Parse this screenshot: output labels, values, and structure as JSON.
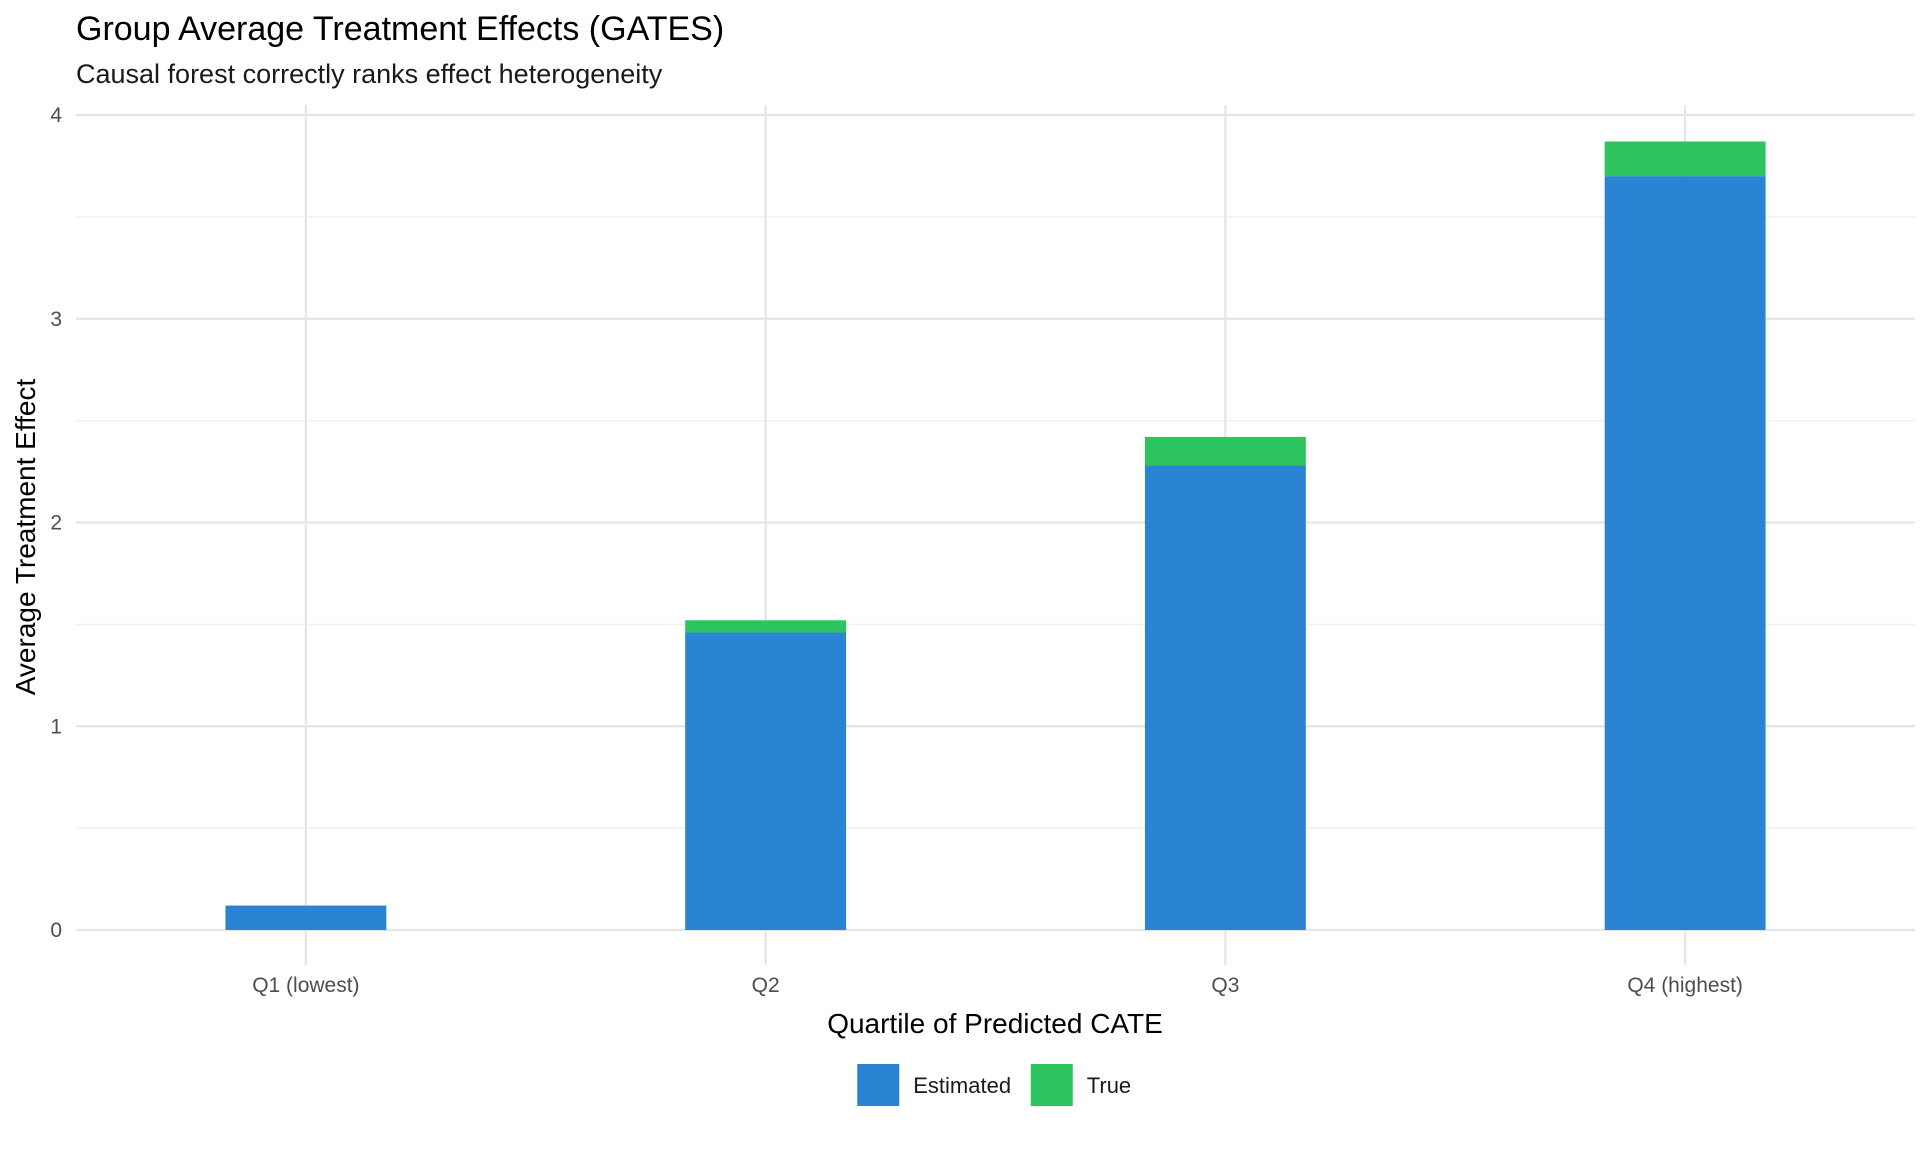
{
  "chart_data": {
    "type": "bar",
    "stacked": true,
    "title": "Group Average Treatment Effects (GATES)",
    "subtitle": "Causal forest correctly ranks effect heterogeneity",
    "xlabel": "Quartile of Predicted CATE",
    "ylabel": "Average Treatment Effect",
    "categories": [
      "Q1 (lowest)",
      "Q2",
      "Q3",
      "Q4 (highest)"
    ],
    "series": [
      {
        "name": "Estimated",
        "color": "#2B84D3",
        "values": [
          0.12,
          1.46,
          2.28,
          3.7
        ]
      },
      {
        "name": "True",
        "color": "#2CC45E",
        "values": [
          0.0,
          0.06,
          0.14,
          0.17
        ]
      }
    ],
    "ylim": [
      0,
      4
    ],
    "yticks": [
      0,
      1,
      2,
      3,
      4
    ],
    "grid": true,
    "legend_position": "bottom"
  }
}
